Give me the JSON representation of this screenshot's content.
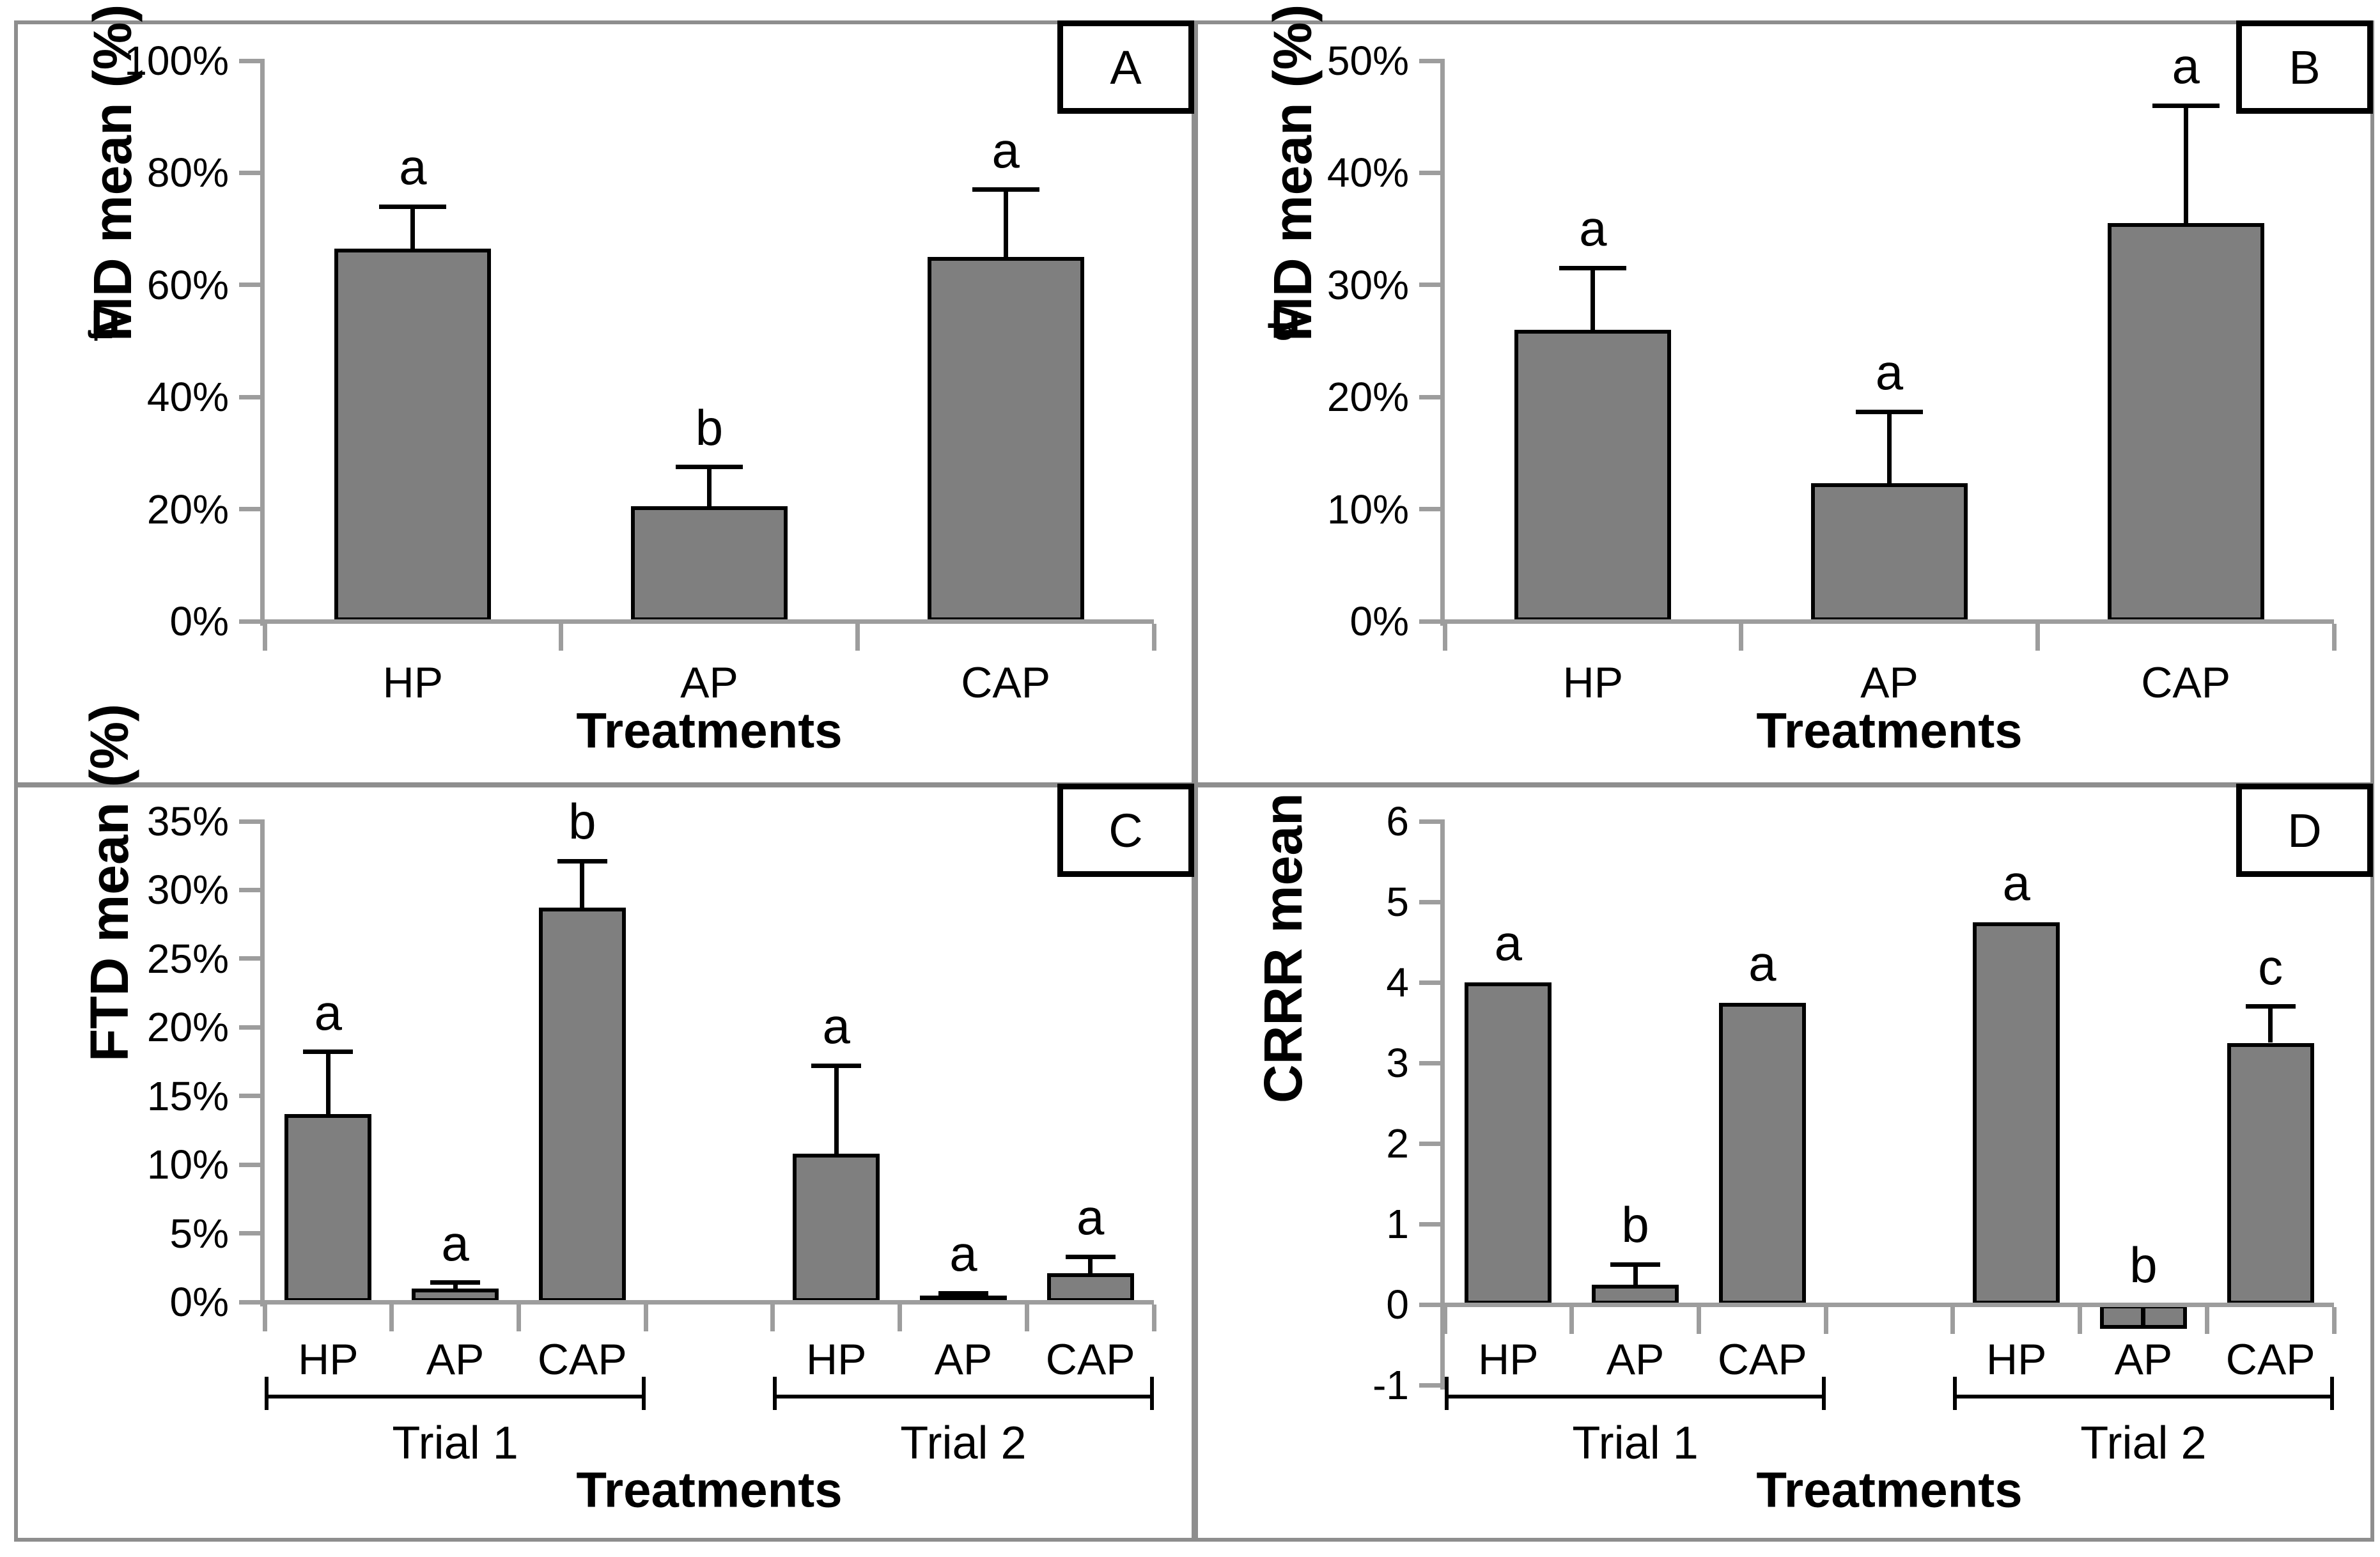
{
  "figure": {
    "description": "Four-panel bar chart figure comparing treatments HP, AP, CAP",
    "panel_labels": [
      "A",
      "B",
      "C",
      "D"
    ]
  },
  "colors": {
    "background": "#ffffff",
    "bar_fill": "#7f7f7f",
    "bar_border": "#000000",
    "axis_line": "#9d9d9d",
    "panel_border": "#8e8e8e",
    "text": "#000000"
  },
  "chart_data": [
    {
      "id": "A",
      "type": "bar",
      "panel_label": "A",
      "ylabel": "FfMD mean (%)",
      "ylabel_parts": {
        "prefix": "F",
        "subscript": "f",
        "suffix": "MD mean (%)"
      },
      "xlabel": "Treatments",
      "ylim": [
        0,
        100
      ],
      "grid": false,
      "yticks": [
        {
          "value": 0,
          "label": "0%"
        },
        {
          "value": 20,
          "label": "20%"
        },
        {
          "value": 40,
          "label": "40%"
        },
        {
          "value": 60,
          "label": "60%"
        },
        {
          "value": 80,
          "label": "80%"
        },
        {
          "value": 100,
          "label": "100%"
        }
      ],
      "n_slots": 3,
      "groups": [],
      "bars": [
        {
          "slot": 0,
          "category": "HP",
          "value": 66.5,
          "error_top": 74,
          "letter": "a"
        },
        {
          "slot": 1,
          "category": "AP",
          "value": 20.5,
          "error_top": 27.5,
          "letter": "b"
        },
        {
          "slot": 2,
          "category": "CAP",
          "value": 65,
          "error_top": 77,
          "letter": "a"
        }
      ]
    },
    {
      "id": "B",
      "type": "bar",
      "panel_label": "B",
      "ylabel": "FdMD mean (%)",
      "ylabel_parts": {
        "prefix": "F",
        "subscript": "d",
        "suffix": "MD mean (%)"
      },
      "xlabel": "Treatments",
      "ylim": [
        0,
        50
      ],
      "grid": false,
      "yticks": [
        {
          "value": 0,
          "label": "0%"
        },
        {
          "value": 10,
          "label": "10%"
        },
        {
          "value": 20,
          "label": "20%"
        },
        {
          "value": 30,
          "label": "30%"
        },
        {
          "value": 40,
          "label": "40%"
        },
        {
          "value": 50,
          "label": "50%"
        }
      ],
      "n_slots": 3,
      "groups": [],
      "bars": [
        {
          "slot": 0,
          "category": "HP",
          "value": 26,
          "error_top": 31.5,
          "letter": "a"
        },
        {
          "slot": 1,
          "category": "AP",
          "value": 12.3,
          "error_top": 18.7,
          "letter": "a"
        },
        {
          "slot": 2,
          "category": "CAP",
          "value": 35.5,
          "error_top": 46,
          "letter": "a"
        }
      ]
    },
    {
      "id": "C",
      "type": "bar",
      "panel_label": "C",
      "ylabel": "FTD mean (%)",
      "ylabel_parts": {
        "prefix": "FTD mean (%)",
        "subscript": "",
        "suffix": ""
      },
      "xlabel": "Treatments",
      "ylim": [
        0,
        35
      ],
      "grid": false,
      "yticks": [
        {
          "value": 0,
          "label": "0%"
        },
        {
          "value": 5,
          "label": "5%"
        },
        {
          "value": 10,
          "label": "10%"
        },
        {
          "value": 15,
          "label": "15%"
        },
        {
          "value": 20,
          "label": "20%"
        },
        {
          "value": 25,
          "label": "25%"
        },
        {
          "value": 30,
          "label": "30%"
        },
        {
          "value": 35,
          "label": "35%"
        }
      ],
      "n_slots": 7,
      "groups": [
        {
          "label": "Trial 1",
          "slot_start": 0,
          "slot_end": 3
        },
        {
          "label": "Trial 2",
          "slot_start": 4,
          "slot_end": 7
        }
      ],
      "bars": [
        {
          "slot": 0,
          "category": "HP",
          "value": 13.7,
          "error_top": 18.2,
          "letter": "a"
        },
        {
          "slot": 1,
          "category": "AP",
          "value": 1.0,
          "error_top": 1.4,
          "letter": "a"
        },
        {
          "slot": 2,
          "category": "CAP",
          "value": 28.7,
          "error_top": 32.1,
          "letter": "b"
        },
        {
          "slot": 4,
          "category": "HP",
          "value": 10.8,
          "error_top": 17.2,
          "letter": "a"
        },
        {
          "slot": 5,
          "category": "AP",
          "value": 0.45,
          "error_top": 0.65,
          "letter": "a"
        },
        {
          "slot": 6,
          "category": "CAP",
          "value": 2.1,
          "error_top": 3.3,
          "letter": "a"
        }
      ]
    },
    {
      "id": "D",
      "type": "bar",
      "panel_label": "D",
      "ylabel": "CRRR mean",
      "ylabel_parts": {
        "prefix": "CRRR mean",
        "subscript": "",
        "suffix": ""
      },
      "xlabel": "Treatments",
      "ylim": [
        -1,
        6
      ],
      "grid": false,
      "yticks": [
        {
          "value": -1,
          "label": "-1"
        },
        {
          "value": 0,
          "label": "0"
        },
        {
          "value": 1,
          "label": "1"
        },
        {
          "value": 2,
          "label": "2"
        },
        {
          "value": 3,
          "label": "3"
        },
        {
          "value": 4,
          "label": "4"
        },
        {
          "value": 5,
          "label": "5"
        },
        {
          "value": 6,
          "label": "6"
        }
      ],
      "n_slots": 7,
      "groups": [
        {
          "label": "Trial 1",
          "slot_start": 0,
          "slot_end": 3
        },
        {
          "label": "Trial 2",
          "slot_start": 4,
          "slot_end": 7
        }
      ],
      "bars": [
        {
          "slot": 0,
          "category": "HP",
          "value": 4.0,
          "error_top": null,
          "letter": "a"
        },
        {
          "slot": 1,
          "category": "AP",
          "value": 0.25,
          "error_top": 0.5,
          "letter": "b"
        },
        {
          "slot": 2,
          "category": "CAP",
          "value": 3.75,
          "error_top": null,
          "letter": "a"
        },
        {
          "slot": 4,
          "category": "HP",
          "value": 4.75,
          "error_top": null,
          "letter": "a"
        },
        {
          "slot": 5,
          "category": "AP",
          "value": -0.3,
          "error_top": null,
          "error_down": true,
          "letter": "b",
          "letter_above_axis": true
        },
        {
          "slot": 6,
          "category": "CAP",
          "value": 3.25,
          "error_top": 3.7,
          "letter": "c"
        }
      ]
    }
  ]
}
